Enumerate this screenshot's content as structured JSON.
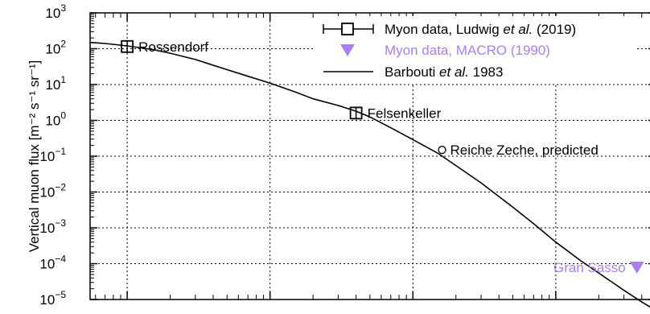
{
  "chart_data": {
    "type": "line",
    "ylabel": "Vertical muon flux [m⁻² s⁻¹ sr⁻¹]",
    "y_scale": "log",
    "ylim": [
      1e-05,
      1000
    ],
    "x_scale": "log",
    "xlim": [
      0.55,
      5000
    ],
    "grid": true,
    "y_ticks": [
      {
        "value": 1000,
        "mantissa": "10",
        "exponent": "3"
      },
      {
        "value": 100,
        "mantissa": "10",
        "exponent": "2"
      },
      {
        "value": 10,
        "mantissa": "10",
        "exponent": "1"
      },
      {
        "value": 1,
        "mantissa": "10",
        "exponent": "0"
      },
      {
        "value": 0.1,
        "mantissa": "10",
        "exponent": "−1"
      },
      {
        "value": 0.01,
        "mantissa": "10",
        "exponent": "−2"
      },
      {
        "value": 0.001,
        "mantissa": "10",
        "exponent": "−3"
      },
      {
        "value": 0.0001,
        "mantissa": "10",
        "exponent": "−4"
      },
      {
        "value": 1e-05,
        "mantissa": "10",
        "exponent": "−5"
      }
    ],
    "x_gridlines": [
      1,
      10,
      100,
      1000
    ],
    "legend": {
      "placement": "top-right",
      "entries": [
        {
          "parts": [
            {
              "text": "Myon data, Ludwig ",
              "italic": false
            },
            {
              "text": "et al.",
              "italic": true
            },
            {
              "text": " (2019)",
              "italic": false
            }
          ],
          "marker": "open-square-errorbar",
          "color": "#000000"
        },
        {
          "parts": [
            {
              "text": "Myon data, MACRO (1990)",
              "italic": false
            }
          ],
          "marker": "triangle-down",
          "color": "#a97ff0"
        },
        {
          "parts": [
            {
              "text": "Barbouti ",
              "italic": false
            },
            {
              "text": "et al.",
              "italic": true
            },
            {
              "text": " 1983",
              "italic": false
            }
          ],
          "marker": "line",
          "color": "#000000"
        }
      ]
    },
    "series": [
      {
        "name": "Barbouti et al. 1983",
        "kind": "curve",
        "color": "#000000",
        "points": [
          {
            "x": 0.55,
            "y": 150
          },
          {
            "x": 0.7,
            "y": 140
          },
          {
            "x": 1.0,
            "y": 120
          },
          {
            "x": 1.5,
            "y": 95
          },
          {
            "x": 2.0,
            "y": 75
          },
          {
            "x": 3.0,
            "y": 50
          },
          {
            "x": 5.0,
            "y": 26
          },
          {
            "x": 7.0,
            "y": 17
          },
          {
            "x": 10,
            "y": 11
          },
          {
            "x": 15,
            "y": 6.2
          },
          {
            "x": 20,
            "y": 4.0
          },
          {
            "x": 30,
            "y": 2.6
          },
          {
            "x": 40,
            "y": 1.8
          },
          {
            "x": 50,
            "y": 1.25
          },
          {
            "x": 70,
            "y": 0.62
          },
          {
            "x": 100,
            "y": 0.29
          },
          {
            "x": 150,
            "y": 0.12
          },
          {
            "x": 200,
            "y": 0.055
          },
          {
            "x": 300,
            "y": 0.018
          },
          {
            "x": 400,
            "y": 0.0075
          },
          {
            "x": 500,
            "y": 0.0038
          },
          {
            "x": 700,
            "y": 0.0013
          },
          {
            "x": 1000,
            "y": 0.0004
          },
          {
            "x": 1500,
            "y": 0.00012
          },
          {
            "x": 2000,
            "y": 5.5e-05
          },
          {
            "x": 3000,
            "y": 1.8e-05
          },
          {
            "x": 4000,
            "y": 8.5e-06
          },
          {
            "x": 5000,
            "y": 5e-06
          }
        ]
      },
      {
        "name": "Myon data, Ludwig et al. (2019)",
        "kind": "points",
        "marker": "open-square-errorbar",
        "color": "#000000",
        "points": [
          {
            "x": 1.0,
            "y": 115,
            "label": "Rossendorf"
          },
          {
            "x": 40,
            "y": 1.6,
            "label": "Felsenkeller"
          }
        ]
      },
      {
        "name": "Reiche Zeche, predicted",
        "kind": "points",
        "marker": "open-circle",
        "color": "#000000",
        "points": [
          {
            "x": 160,
            "y": 0.15,
            "label": "Reiche Zeche, predicted"
          }
        ]
      },
      {
        "name": "Myon data, MACRO (1990)",
        "kind": "points",
        "marker": "triangle-down",
        "color": "#a97ff0",
        "points": [
          {
            "x": 3700,
            "y": 8e-05,
            "label": "Gran Sasso"
          }
        ]
      }
    ]
  }
}
